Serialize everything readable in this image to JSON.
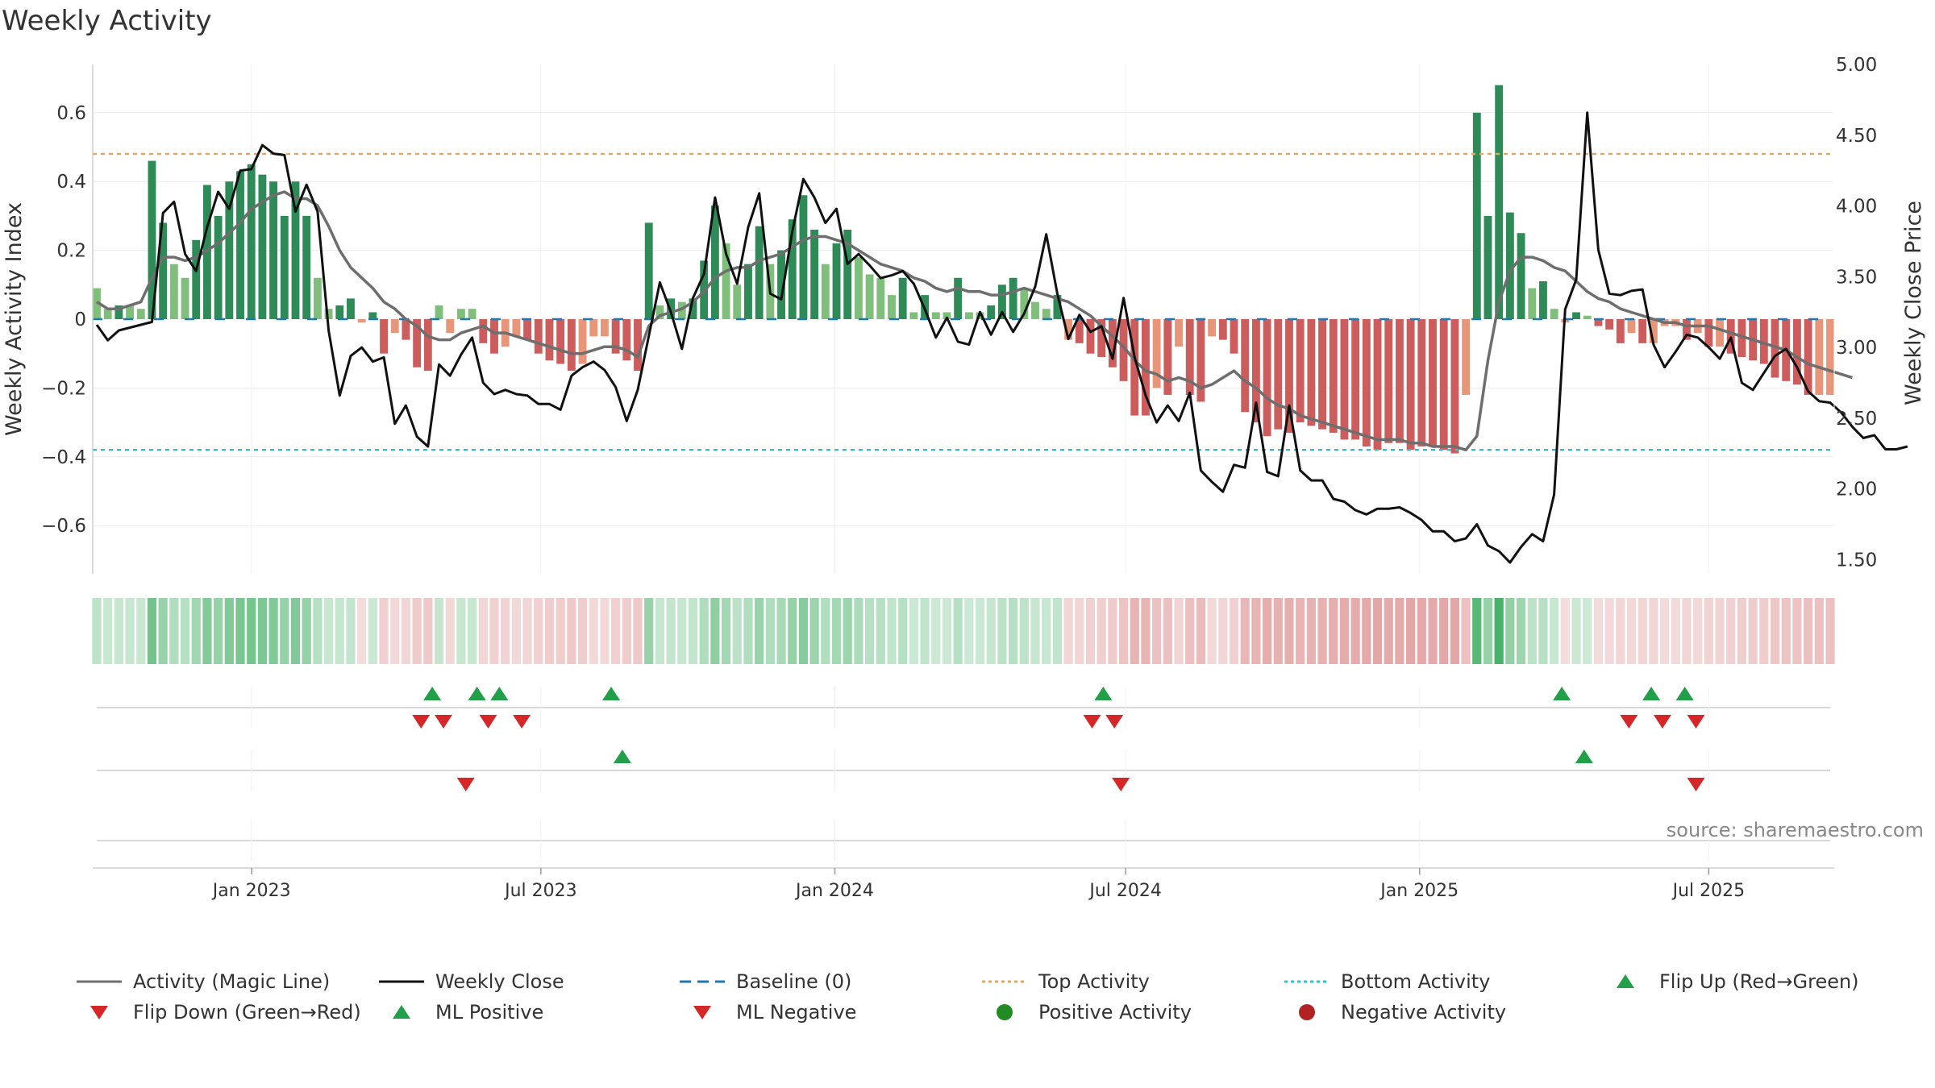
{
  "title": "Weekly Activity",
  "source": "source: sharemaestro.com",
  "colors": {
    "dark_green": "#2e8b57",
    "light_green": "#7fbf7b",
    "dark_red": "#cd5c5c",
    "light_red": "#e8967a",
    "magic_line": "#6e6e6e",
    "close_line": "#111111",
    "baseline": "#1f77b4",
    "top": "#e8a65a",
    "bottom": "#2bc4d6",
    "flip_up": "#22a049",
    "flip_down": "#d62728"
  },
  "chart_data": {
    "type": "bar",
    "x_start": "2022-09-26",
    "x_end": "2025-09-15",
    "left_axis": {
      "label": "Weekly Activity Index",
      "range": [
        -0.74,
        0.74
      ],
      "ticks": [
        0.6,
        0.4,
        0.2,
        0,
        -0.2,
        -0.4,
        -0.6
      ],
      "tick_labels": [
        "0.6",
        "0.4",
        "0.2",
        "0",
        "−0.2",
        "−0.4",
        "−0.6"
      ]
    },
    "right_axis": {
      "label": "Weekly Close Price",
      "range": [
        1.4,
        5.0
      ],
      "ticks": [
        5.0,
        4.5,
        4.0,
        3.5,
        3.0,
        2.5,
        2.0,
        1.5
      ],
      "tick_labels": [
        "5.00",
        "4.50",
        "4.00",
        "3.50",
        "3.00",
        "2.50",
        "2.00",
        "1.50"
      ]
    },
    "x_ticks": [
      {
        "date": "2023-01-01",
        "label": "Jan 2023"
      },
      {
        "date": "2023-07-01",
        "label": "Jul 2023"
      },
      {
        "date": "2024-01-01",
        "label": "Jan 2024"
      },
      {
        "date": "2024-07-01",
        "label": "Jul 2024"
      },
      {
        "date": "2025-01-01",
        "label": "Jan 2025"
      },
      {
        "date": "2025-07-01",
        "label": "Jul 2025"
      }
    ],
    "top_activity": 0.48,
    "bottom_activity": -0.38,
    "activity": [
      0.09,
      0.03,
      0.04,
      0.04,
      0.03,
      0.46,
      0.28,
      0.16,
      0.12,
      0.23,
      0.39,
      0.3,
      0.4,
      0.43,
      0.45,
      0.42,
      0.4,
      0.3,
      0.4,
      0.3,
      0.12,
      0.03,
      0.04,
      0.06,
      -0.01,
      0.02,
      -0.1,
      -0.04,
      -0.06,
      -0.14,
      -0.15,
      0.04,
      -0.04,
      0.03,
      0.03,
      -0.07,
      -0.1,
      -0.08,
      -0.05,
      -0.06,
      -0.1,
      -0.12,
      -0.13,
      -0.15,
      -0.13,
      -0.05,
      -0.05,
      -0.1,
      -0.12,
      -0.15,
      0.28,
      0.04,
      0.06,
      0.05,
      0.06,
      0.17,
      0.33,
      0.22,
      0.1,
      0.16,
      0.27,
      0.16,
      0.2,
      0.29,
      0.36,
      0.26,
      0.16,
      0.22,
      0.26,
      0.18,
      0.13,
      0.12,
      0.07,
      0.12,
      0.02,
      0.07,
      0.02,
      0.02,
      0.12,
      0.02,
      0.02,
      0.04,
      0.1,
      0.12,
      0.09,
      0.05,
      0.03,
      0.07,
      -0.06,
      -0.07,
      -0.1,
      -0.11,
      -0.14,
      -0.18,
      -0.28,
      -0.28,
      -0.2,
      -0.22,
      -0.08,
      -0.22,
      -0.24,
      -0.05,
      -0.06,
      -0.1,
      -0.27,
      -0.3,
      -0.34,
      -0.32,
      -0.33,
      -0.3,
      -0.31,
      -0.32,
      -0.33,
      -0.35,
      -0.35,
      -0.37,
      -0.38,
      -0.36,
      -0.36,
      -0.38,
      -0.37,
      -0.37,
      -0.38,
      -0.39,
      -0.22,
      0.6,
      0.3,
      0.68,
      0.31,
      0.25,
      0.09,
      0.11,
      0.03,
      -0.01,
      0.02,
      0.01,
      -0.02,
      -0.03,
      -0.07,
      -0.04,
      -0.07,
      -0.07,
      -0.02,
      -0.02,
      -0.06,
      -0.04,
      -0.08,
      -0.08,
      -0.1,
      -0.11,
      -0.12,
      -0.13,
      -0.17,
      -0.18,
      -0.19,
      -0.22,
      -0.22,
      -0.22
    ],
    "magic_line": [
      0.05,
      0.03,
      0.03,
      0.04,
      0.05,
      0.12,
      0.18,
      0.18,
      0.17,
      0.18,
      0.2,
      0.22,
      0.25,
      0.28,
      0.32,
      0.34,
      0.36,
      0.37,
      0.35,
      0.35,
      0.33,
      0.27,
      0.2,
      0.15,
      0.12,
      0.09,
      0.05,
      0.03,
      0,
      -0.02,
      -0.05,
      -0.06,
      -0.06,
      -0.04,
      -0.03,
      -0.02,
      -0.04,
      -0.04,
      -0.05,
      -0.06,
      -0.07,
      -0.08,
      -0.09,
      -0.1,
      -0.1,
      -0.09,
      -0.08,
      -0.08,
      -0.09,
      -0.11,
      -0.02,
      0.01,
      0.02,
      0.03,
      0.05,
      0.08,
      0.12,
      0.14,
      0.15,
      0.15,
      0.17,
      0.18,
      0.19,
      0.21,
      0.23,
      0.24,
      0.24,
      0.23,
      0.22,
      0.2,
      0.18,
      0.16,
      0.15,
      0.14,
      0.12,
      0.11,
      0.09,
      0.08,
      0.09,
      0.08,
      0.08,
      0.07,
      0.07,
      0.08,
      0.09,
      0.08,
      0.07,
      0.06,
      0.05,
      0.03,
      0.01,
      -0.02,
      -0.05,
      -0.08,
      -0.12,
      -0.15,
      -0.16,
      -0.18,
      -0.17,
      -0.18,
      -0.2,
      -0.19,
      -0.17,
      -0.15,
      -0.18,
      -0.2,
      -0.23,
      -0.25,
      -0.26,
      -0.28,
      -0.29,
      -0.3,
      -0.31,
      -0.32,
      -0.33,
      -0.34,
      -0.35,
      -0.35,
      -0.35,
      -0.36,
      -0.36,
      -0.37,
      -0.37,
      -0.37,
      -0.38,
      -0.34,
      -0.12,
      0.05,
      0.14,
      0.18,
      0.18,
      0.17,
      0.15,
      0.14,
      0.11,
      0.08,
      0.06,
      0.05,
      0.03,
      0.02,
      0.01,
      0,
      -0.01,
      -0.01,
      -0.02,
      -0.02,
      -0.02,
      -0.03,
      -0.04,
      -0.05,
      -0.06,
      -0.07,
      -0.08,
      -0.09,
      -0.11,
      -0.13,
      -0.14,
      -0.15,
      -0.16,
      -0.17
    ],
    "weekly_close": [
      3.16,
      3.05,
      3.12,
      3.14,
      3.16,
      3.18,
      3.95,
      4.03,
      3.66,
      3.54,
      3.85,
      4.1,
      3.98,
      4.25,
      4.26,
      4.43,
      4.37,
      4.36,
      3.96,
      4.15,
      3.96,
      3.12,
      2.66,
      2.94,
      3.0,
      2.9,
      2.93,
      2.46,
      2.59,
      2.37,
      2.3,
      2.88,
      2.8,
      2.95,
      3.07,
      2.75,
      2.67,
      2.7,
      2.67,
      2.66,
      2.6,
      2.6,
      2.56,
      2.8,
      2.86,
      2.9,
      2.84,
      2.72,
      2.48,
      2.7,
      3.08,
      3.46,
      3.25,
      2.99,
      3.35,
      3.52,
      4.06,
      3.66,
      3.45,
      3.85,
      4.09,
      3.38,
      3.34,
      3.82,
      4.19,
      4.06,
      3.88,
      3.98,
      3.59,
      3.66,
      3.58,
      3.49,
      3.51,
      3.54,
      3.45,
      3.27,
      3.07,
      3.21,
      3.04,
      3.02,
      3.25,
      3.09,
      3.25,
      3.11,
      3.24,
      3.43,
      3.8,
      3.38,
      3.06,
      3.23,
      3.11,
      3.15,
      2.92,
      3.35,
      2.93,
      2.66,
      2.47,
      2.59,
      2.48,
      2.68,
      2.13,
      2.05,
      1.98,
      2.17,
      2.15,
      2.61,
      2.12,
      2.09,
      2.59,
      2.13,
      2.06,
      2.06,
      1.93,
      1.91,
      1.85,
      1.82,
      1.86,
      1.86,
      1.87,
      1.83,
      1.78,
      1.7,
      1.7,
      1.63,
      1.65,
      1.75,
      1.6,
      1.56,
      1.48,
      1.59,
      1.68,
      1.63,
      1.96,
      3.27,
      3.48,
      4.66,
      3.69,
      3.38,
      3.37,
      3.4,
      3.41,
      3.02,
      2.86,
      2.97,
      3.09,
      3.07,
      3.0,
      2.92,
      3.07,
      2.75,
      2.7,
      2.82,
      2.94,
      2.99,
      2.86,
      2.69,
      2.62,
      2.61,
      2.54,
      2.44,
      2.36,
      2.38,
      2.28,
      2.28,
      2.3
    ],
    "flip_up": [
      "2023-04-24",
      "2023-05-22",
      "2023-06-05",
      "2023-08-14",
      "2024-06-17",
      "2025-03-31",
      "2025-05-26",
      "2025-06-16"
    ],
    "flip_down": [
      "2023-04-17",
      "2023-05-01",
      "2023-05-29",
      "2023-06-19",
      "2024-06-10",
      "2024-06-24",
      "2025-05-12",
      "2025-06-02",
      "2025-06-23"
    ],
    "ml_positive": [
      "2023-08-21",
      "2025-04-14"
    ],
    "ml_negative": [
      "2023-05-15",
      "2024-06-28",
      "2025-06-23"
    ],
    "positive_activity": [],
    "negative_activity": []
  },
  "legend": [
    {
      "label": "Activity (Magic Line)",
      "kind": "line",
      "color": "#6e6e6e",
      "dash": ""
    },
    {
      "label": "Weekly Close",
      "kind": "line",
      "color": "#111111",
      "dash": ""
    },
    {
      "label": "Baseline (0)",
      "kind": "line",
      "color": "#1f77b4",
      "dash": "14 8"
    },
    {
      "label": "Top Activity",
      "kind": "line",
      "color": "#e8a65a",
      "dash": "4 4"
    },
    {
      "label": "Bottom Activity",
      "kind": "line",
      "color": "#2bc4d6",
      "dash": "4 4"
    },
    {
      "label": "Flip Up (Red→Green)",
      "kind": "tri-up",
      "color": "#22a049"
    },
    {
      "label": "Flip Down (Green→Red)",
      "kind": "tri-down",
      "color": "#d62728"
    },
    {
      "label": "ML Positive",
      "kind": "tri-up",
      "color": "#22a049"
    },
    {
      "label": "ML Negative",
      "kind": "tri-down",
      "color": "#d62728"
    },
    {
      "label": "Positive Activity",
      "kind": "dot",
      "color": "#228b22"
    },
    {
      "label": "Negative Activity",
      "kind": "dot",
      "color": "#b22222"
    }
  ]
}
